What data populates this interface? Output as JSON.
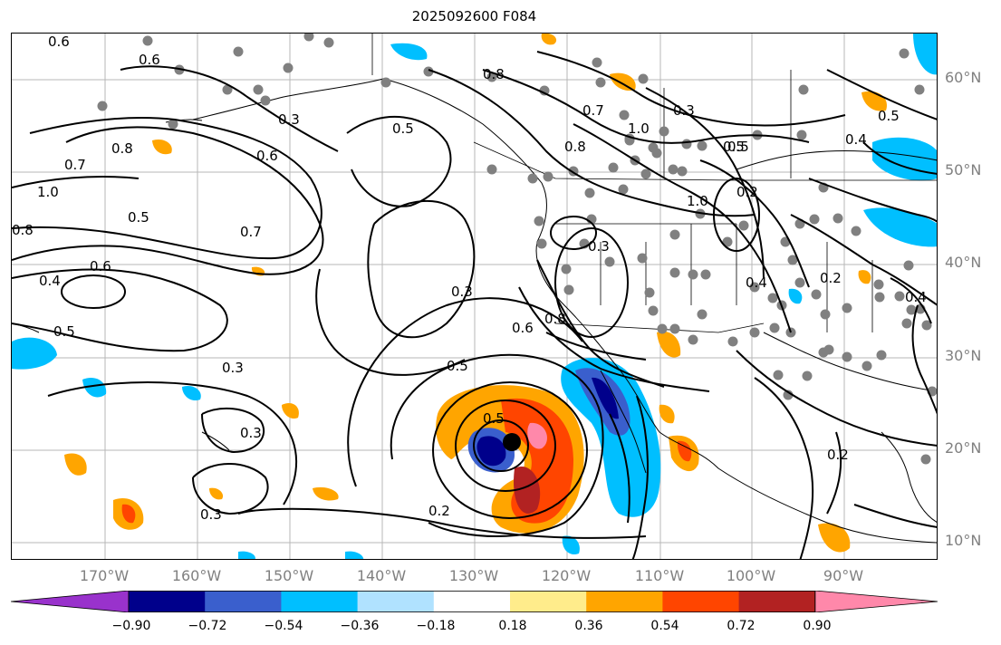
{
  "title": "2025092600 F084",
  "lat_labels": [
    "60°N",
    "50°N",
    "40°N",
    "30°N",
    "20°N",
    "10°N"
  ],
  "lon_labels": [
    "170°W",
    "160°W",
    "150°W",
    "140°W",
    "130°W",
    "120°W",
    "110°W",
    "100°W",
    "90°W"
  ],
  "contour_labels": [
    "0.6",
    "0.6",
    "0.7",
    "0.8",
    "1.0",
    "0.8",
    "0.5",
    "0.6",
    "0.7",
    "0.4",
    "0.6",
    "0.5",
    "0.5",
    "0.3",
    "0.5",
    "0.3",
    "0.3",
    "0.3",
    "0.2",
    "0.3",
    "0.8",
    "0.7",
    "1.0",
    "0.3",
    "0.5",
    "0.4",
    "0.5",
    "0.8",
    "0.3",
    "1.0",
    "0.2",
    "0.4",
    "0.2",
    "0.4",
    "0.6",
    "0.8",
    "0.5",
    "0.5",
    "0.2"
  ],
  "colorbar": {
    "ticks": [
      "−0.90",
      "−0.72",
      "−0.54",
      "−0.36",
      "−0.18",
      "0.18",
      "0.36",
      "0.54",
      "0.72",
      "0.90"
    ],
    "colors": [
      "#9932cc",
      "#00008b",
      "#3a5fcd",
      "#00bfff",
      "#b0e2ff",
      "#ffffff",
      "#ffec8b",
      "#ffa500",
      "#ff4500",
      "#b22222",
      "#ff88aa"
    ]
  },
  "colors": {
    "neg_light": "#b0e2ff",
    "neg_mid": "#00bfff",
    "neg_strong": "#3a5fcd",
    "neg_deep": "#00008b",
    "pos_light": "#ffec8b",
    "pos_mid": "#ffa500",
    "pos_strong": "#ff4500",
    "pos_deep": "#b22222",
    "pos_max": "#ff88aa",
    "stations": "#808080"
  }
}
